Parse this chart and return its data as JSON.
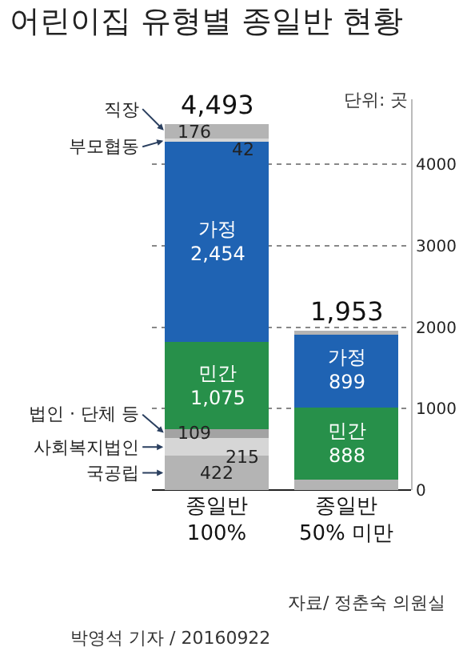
{
  "chart_data": {
    "type": "bar",
    "title": "어린이집 유형별 종일반 현황",
    "stacked": true,
    "categories": [
      "종일반 100%",
      "종일반 50% 미만"
    ],
    "series": [
      {
        "name": "국공립",
        "color": "#b4b4b4",
        "values": [
          422,
          130
        ],
        "value_labels": [
          "422",
          null
        ]
      },
      {
        "name": "사회복지법인",
        "color": "#d6d6d6",
        "values": [
          215,
          null
        ],
        "value_labels": [
          "215",
          null
        ]
      },
      {
        "name": "법인 · 단체 등",
        "color": "#a3a3a3",
        "values": [
          109,
          null
        ],
        "value_labels": [
          "109",
          null
        ]
      },
      {
        "name": "민간",
        "color": "#27904a",
        "values": [
          1075,
          888
        ],
        "value_labels": [
          "1,075",
          "888"
        ]
      },
      {
        "name": "가정",
        "color": "#1f63b3",
        "values": [
          2454,
          899
        ],
        "value_labels": [
          "2,454",
          "899"
        ]
      },
      {
        "name": "부모협동",
        "color": "#d6d6d6",
        "values": [
          42,
          null
        ],
        "value_labels": [
          "42",
          null
        ]
      },
      {
        "name": "직장",
        "color": "#b4b4b4",
        "values": [
          176,
          36
        ],
        "value_labels": [
          "176",
          null
        ]
      }
    ],
    "totals": [
      "4,493",
      "1,953"
    ],
    "ylim": [
      0,
      4800
    ],
    "yticks": [
      0,
      1000,
      2000,
      3000,
      4000
    ],
    "grid": "y",
    "annotations": [
      "단위: 곳",
      "자료/ 정춘숙 의원실",
      "박영석 기자 / 20160922"
    ]
  }
}
